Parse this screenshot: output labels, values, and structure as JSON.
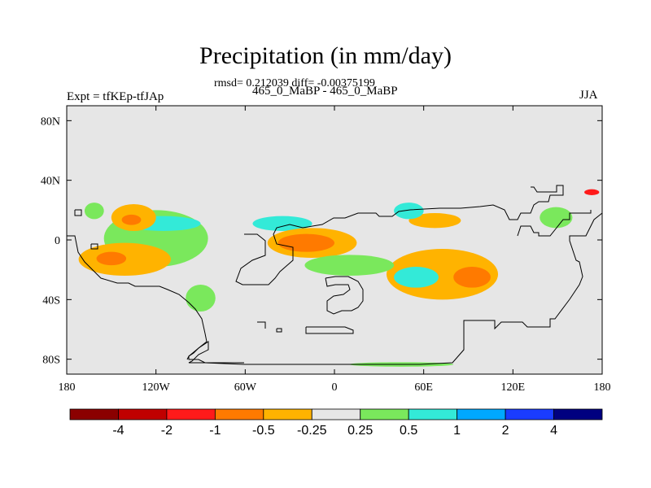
{
  "header": {
    "title": "Precipitation (in mm/day)",
    "stats": "rmsd= 0.212039 diff= -0.00375199",
    "subtitle": "465_0_MaBP - 465_0_MaBP",
    "left_label": "Expt = tfKEp-tfJAp",
    "right_label": "JJA"
  },
  "chart_data": {
    "type": "heatmap",
    "title": "Precipitation (in mm/day)",
    "subtitle": "465_0_MaBP - 465_0_MaBP",
    "rmsd": 0.212039,
    "diff": -0.00375199,
    "season": "JJA",
    "experiment": "tfKEp-tfJAp",
    "xlim": [
      -180,
      180
    ],
    "ylim": [
      -90,
      90
    ],
    "x_ticks": [
      {
        "value": -180,
        "label": "180"
      },
      {
        "value": -120,
        "label": "120W"
      },
      {
        "value": -60,
        "label": "60W"
      },
      {
        "value": 0,
        "label": "0"
      },
      {
        "value": 60,
        "label": "60E"
      },
      {
        "value": 120,
        "label": "120E"
      },
      {
        "value": 180,
        "label": "180"
      }
    ],
    "y_ticks": [
      {
        "value": 80,
        "label": "80N"
      },
      {
        "value": 40,
        "label": "40N"
      },
      {
        "value": 0,
        "label": "0"
      },
      {
        "value": -40,
        "label": "40S"
      },
      {
        "value": -80,
        "label": "80S"
      }
    ],
    "colorbar": {
      "levels": [
        "-4",
        "-2",
        "-1",
        "-0.5",
        "-0.25",
        "0.25",
        "0.5",
        "1",
        "2",
        "4"
      ],
      "colors": [
        "#8b0000",
        "#c00000",
        "#ff1a1a",
        "#ff7a00",
        "#ffb300",
        "#e6e6e6",
        "#7ae85c",
        "#33ead8",
        "#00a8ff",
        "#1a3cff",
        "#000080"
      ]
    },
    "background_color": "#e6e6e6",
    "regions": [
      {
        "level": "0.25",
        "lon": [
          -168,
          -155
        ],
        "lat": [
          14,
          25
        ]
      },
      {
        "level": "0.25",
        "lon": [
          -155,
          -85
        ],
        "lat": [
          -18,
          20
        ]
      },
      {
        "level": "0.5",
        "lon": [
          -140,
          -90
        ],
        "lat": [
          6,
          16
        ]
      },
      {
        "level": "0.5",
        "lon": [
          -55,
          -15
        ],
        "lat": [
          6,
          16
        ]
      },
      {
        "level": "-0.25",
        "lon": [
          -150,
          -120
        ],
        "lat": [
          6,
          24
        ]
      },
      {
        "level": "-0.5",
        "lon": [
          -143,
          -130
        ],
        "lat": [
          10,
          17
        ]
      },
      {
        "level": "-0.25",
        "lon": [
          -172,
          -110
        ],
        "lat": [
          -24,
          -2
        ]
      },
      {
        "level": "-0.5",
        "lon": [
          -160,
          -140
        ],
        "lat": [
          -17,
          -8
        ]
      },
      {
        "level": "-0.25",
        "lon": [
          -45,
          15
        ],
        "lat": [
          -12,
          8
        ]
      },
      {
        "level": "-0.5",
        "lon": [
          -38,
          0
        ],
        "lat": [
          -8,
          4
        ]
      },
      {
        "level": "-0.25",
        "lon": [
          35,
          110
        ],
        "lat": [
          -40,
          -6
        ]
      },
      {
        "level": "-0.5",
        "lon": [
          80,
          105
        ],
        "lat": [
          -32,
          -18
        ]
      },
      {
        "level": "-0.25",
        "lon": [
          50,
          85
        ],
        "lat": [
          8,
          18
        ]
      },
      {
        "level": "0.5",
        "lon": [
          40,
          60
        ],
        "lat": [
          14,
          25
        ]
      },
      {
        "level": "0.25",
        "lon": [
          -20,
          40
        ],
        "lat": [
          -24,
          -10
        ]
      },
      {
        "level": "0.5",
        "lon": [
          40,
          70
        ],
        "lat": [
          -32,
          -18
        ]
      },
      {
        "level": "0.25",
        "lon": [
          138,
          160
        ],
        "lat": [
          8,
          22
        ]
      },
      {
        "level": "-1",
        "lon": [
          168,
          178
        ],
        "lat": [
          30,
          34
        ]
      },
      {
        "level": "0.25",
        "lon": [
          -100,
          -80
        ],
        "lat": [
          -48,
          -30
        ]
      },
      {
        "level": "0.25",
        "lon": [
          10,
          80
        ],
        "lat": [
          -85,
          -82
        ]
      }
    ]
  }
}
